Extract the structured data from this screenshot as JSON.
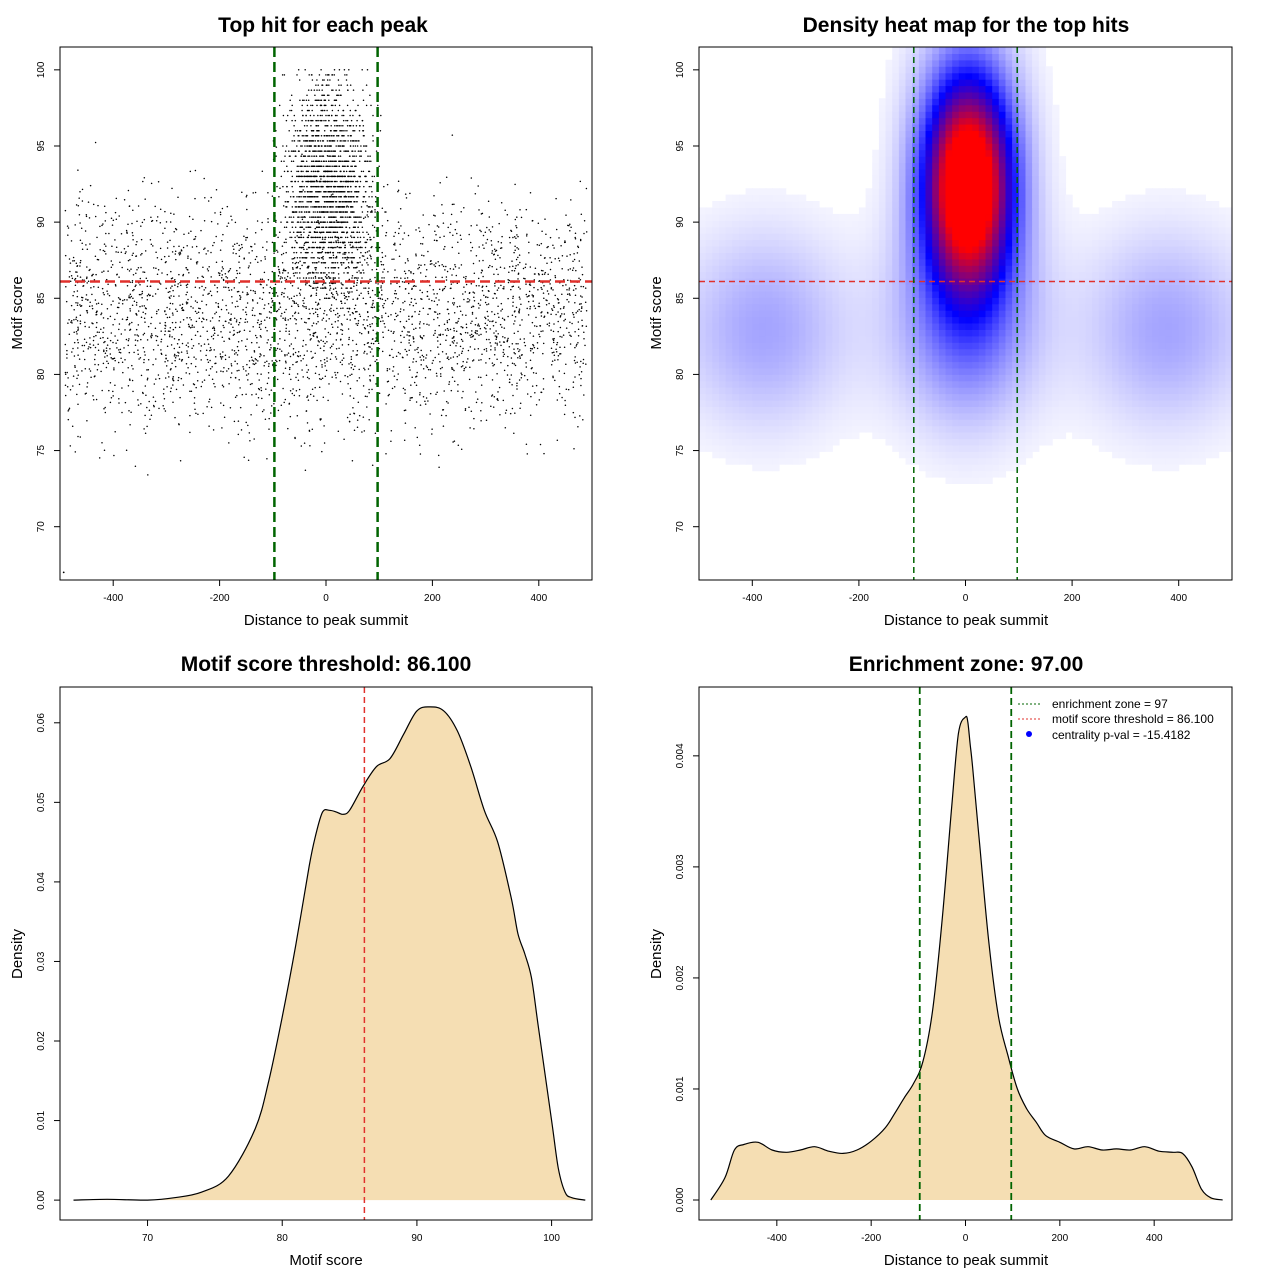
{
  "chart_data": [
    {
      "type": "scatter",
      "title": "Top hit for each peak",
      "xlabel": "Distance to peak summit",
      "ylabel": "Motif score",
      "xlim": [
        -500,
        500
      ],
      "ylim": [
        66.5,
        101.5
      ],
      "xticks": [
        "-400",
        "-200",
        "0",
        "200",
        "400"
      ],
      "yticks": [
        "70",
        "75",
        "80",
        "85",
        "90",
        "95",
        "100"
      ],
      "threshold_line": {
        "y": 86.1,
        "color": "#e0302c"
      },
      "zone_lines": {
        "x": [
          -97,
          97
        ],
        "color": "#006400"
      },
      "points_note": "",
      "point_color": "#000000"
    },
    {
      "type": "heatmap",
      "title": "Density heat map for the top hits",
      "xlabel": "Distance to peak summit",
      "ylabel": "Motif score",
      "xlim": [
        -500,
        500
      ],
      "ylim": [
        66.5,
        101.5
      ],
      "xticks": [
        "-400",
        "-200",
        "0",
        "200",
        "400"
      ],
      "yticks": [
        "70",
        "75",
        "80",
        "85",
        "90",
        "95",
        "100"
      ],
      "threshold_line": {
        "y": 86.1,
        "color": "#e0302c"
      },
      "zone_lines": {
        "x": [
          -97,
          97
        ],
        "color": "#006400"
      },
      "colors": {
        "low": "#ffffff",
        "mid": "#0000ff",
        "high": "#ff0000"
      }
    },
    {
      "type": "area",
      "title": "Motif score threshold: 86.100",
      "xlabel": "Motif score",
      "ylabel": "Density",
      "xlim": [
        63.5,
        103
      ],
      "ylim": [
        -0.0025,
        0.0645
      ],
      "xticks": [
        "70",
        "80",
        "90",
        "100"
      ],
      "yticks": [
        "0.00",
        "0.01",
        "0.02",
        "0.03",
        "0.04",
        "0.05",
        "0.06"
      ],
      "x": [
        64.5,
        67,
        70,
        72,
        74,
        76,
        78,
        79,
        80,
        81,
        82,
        82.5,
        83,
        83.5,
        84,
        84.5,
        85,
        86,
        87,
        88,
        89,
        90,
        91,
        92,
        93,
        94,
        95,
        96,
        97,
        97.5,
        98,
        98.5,
        99,
        100,
        100.5,
        101,
        101.5,
        102.5
      ],
      "y": [
        0.0,
        0.0001,
        0.0,
        0.0003,
        0.001,
        0.003,
        0.009,
        0.015,
        0.023,
        0.032,
        0.042,
        0.046,
        0.0488,
        0.049,
        0.0488,
        0.0485,
        0.049,
        0.052,
        0.0545,
        0.0555,
        0.0585,
        0.0615,
        0.062,
        0.0615,
        0.059,
        0.0545,
        0.049,
        0.045,
        0.038,
        0.0335,
        0.031,
        0.028,
        0.022,
        0.01,
        0.004,
        0.001,
        0.0003,
        0.0
      ],
      "fill": "#f5deb3",
      "threshold_line": {
        "x": 86.1,
        "color": "#e0302c"
      }
    },
    {
      "type": "area",
      "title": "Enrichment zone: 97.00",
      "xlabel": "Distance to peak summit",
      "ylabel": "Density",
      "xlim": [
        -565,
        565
      ],
      "ylim": [
        -0.00018,
        0.00462
      ],
      "xticks": [
        "-400",
        "-200",
        "0",
        "200",
        "400"
      ],
      "yticks": [
        "0.000",
        "0.001",
        "0.002",
        "0.003",
        "0.004"
      ],
      "x": [
        -540,
        -510,
        -490,
        -470,
        -440,
        -410,
        -380,
        -350,
        -320,
        -290,
        -260,
        -230,
        -200,
        -170,
        -150,
        -130,
        -110,
        -90,
        -70,
        -50,
        -30,
        -15,
        0,
        5,
        10,
        15,
        30,
        50,
        70,
        90,
        110,
        130,
        150,
        170,
        200,
        230,
        260,
        290,
        320,
        350,
        380,
        410,
        440,
        460,
        480,
        500,
        520,
        545
      ],
      "y": [
        0.0,
        0.0002,
        0.00045,
        0.0005,
        0.00052,
        0.00045,
        0.00043,
        0.00045,
        0.00048,
        0.00044,
        0.00042,
        0.00045,
        0.00053,
        0.00065,
        0.00078,
        0.00092,
        0.00105,
        0.00125,
        0.0017,
        0.0025,
        0.0035,
        0.0042,
        0.00435,
        0.0043,
        0.0041,
        0.0039,
        0.0032,
        0.0023,
        0.00165,
        0.0013,
        0.001,
        0.00082,
        0.0007,
        0.00058,
        0.00052,
        0.00046,
        0.00048,
        0.00045,
        0.00046,
        0.00045,
        0.00048,
        0.00044,
        0.00043,
        0.00042,
        0.0003,
        0.0001,
        2e-05,
        0.0
      ],
      "fill": "#f5deb3",
      "zone_lines": {
        "x": [
          -97,
          97
        ],
        "color": "#006400"
      },
      "legend": [
        {
          "label": "enrichment zone = 97",
          "color": "#006400",
          "kind": "dotted"
        },
        {
          "label": "motif score threshold = 86.100",
          "color": "#e0302c",
          "kind": "dotted"
        },
        {
          "label": "centrality p-val = -15.4182",
          "color": "#0000ff",
          "kind": "point"
        }
      ],
      "legend_position": "top-right"
    }
  ]
}
